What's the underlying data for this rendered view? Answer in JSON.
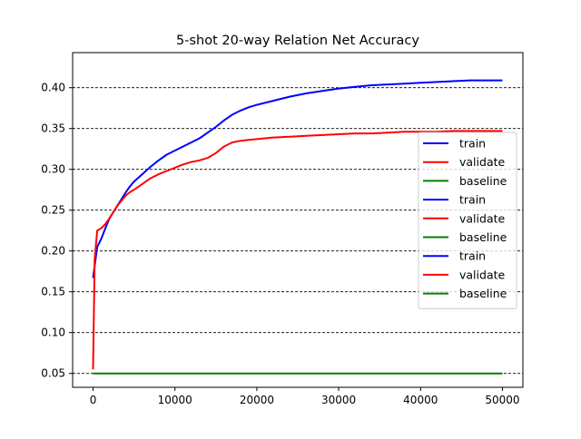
{
  "chart_data": {
    "type": "line",
    "title": "5-shot 20-way Relation Net Accuracy",
    "xlabel": "",
    "ylabel": "",
    "xlim": [
      -2500,
      52500
    ],
    "ylim": [
      0.033,
      0.443
    ],
    "x_ticks": [
      0,
      10000,
      20000,
      30000,
      40000,
      50000
    ],
    "x_tick_labels": [
      "0",
      "10000",
      "20000",
      "30000",
      "40000",
      "50000"
    ],
    "y_ticks": [
      0.05,
      0.1,
      0.15,
      0.2,
      0.25,
      0.3,
      0.35,
      0.4
    ],
    "y_tick_labels": [
      "0.05",
      "0.10",
      "0.15",
      "0.20",
      "0.25",
      "0.30",
      "0.35",
      "0.40"
    ],
    "grid": "horizontal dashed",
    "legend_position": "right",
    "legend": [
      "train",
      "validate",
      "baseline",
      "train",
      "validate",
      "baseline",
      "train",
      "validate",
      "baseline"
    ],
    "series": [
      {
        "name": "train",
        "color": "#0000ff",
        "x": [
          0,
          500,
          1000,
          1500,
          2000,
          2500,
          3000,
          3500,
          4000,
          4500,
          5000,
          6000,
          7000,
          8000,
          9000,
          10000,
          11000,
          12000,
          13000,
          14000,
          15000,
          16000,
          17000,
          18000,
          19000,
          20000,
          22000,
          24000,
          26000,
          28000,
          30000,
          32000,
          34000,
          36000,
          38000,
          40000,
          42000,
          44000,
          46000,
          48000,
          50000
        ],
        "y": [
          0.167,
          0.205,
          0.215,
          0.228,
          0.24,
          0.248,
          0.256,
          0.264,
          0.272,
          0.279,
          0.285,
          0.294,
          0.303,
          0.311,
          0.318,
          0.323,
          0.328,
          0.333,
          0.338,
          0.345,
          0.352,
          0.36,
          0.367,
          0.372,
          0.376,
          0.379,
          0.384,
          0.389,
          0.393,
          0.396,
          0.399,
          0.401,
          0.403,
          0.404,
          0.405,
          0.406,
          0.407,
          0.408,
          0.409,
          0.409,
          0.409
        ]
      },
      {
        "name": "validate",
        "color": "#ff0000",
        "x": [
          0,
          200,
          500,
          1000,
          1500,
          2000,
          2500,
          3000,
          3500,
          4000,
          4500,
          5000,
          6000,
          7000,
          8000,
          9000,
          10000,
          11000,
          12000,
          13000,
          14000,
          15000,
          16000,
          17000,
          18000,
          19000,
          20000,
          22000,
          24000,
          26000,
          28000,
          30000,
          32000,
          34000,
          36000,
          38000,
          40000,
          42000,
          44000,
          46000,
          48000,
          50000
        ],
        "y": [
          0.055,
          0.19,
          0.225,
          0.228,
          0.233,
          0.24,
          0.248,
          0.256,
          0.262,
          0.268,
          0.272,
          0.275,
          0.282,
          0.289,
          0.294,
          0.298,
          0.302,
          0.306,
          0.309,
          0.311,
          0.314,
          0.32,
          0.328,
          0.333,
          0.335,
          0.336,
          0.337,
          0.339,
          0.34,
          0.341,
          0.342,
          0.343,
          0.344,
          0.344,
          0.345,
          0.346,
          0.346,
          0.346,
          0.347,
          0.347,
          0.347,
          0.347
        ]
      },
      {
        "name": "baseline",
        "color": "#008000",
        "x": [
          0,
          50000
        ],
        "y": [
          0.05,
          0.05
        ]
      }
    ]
  }
}
